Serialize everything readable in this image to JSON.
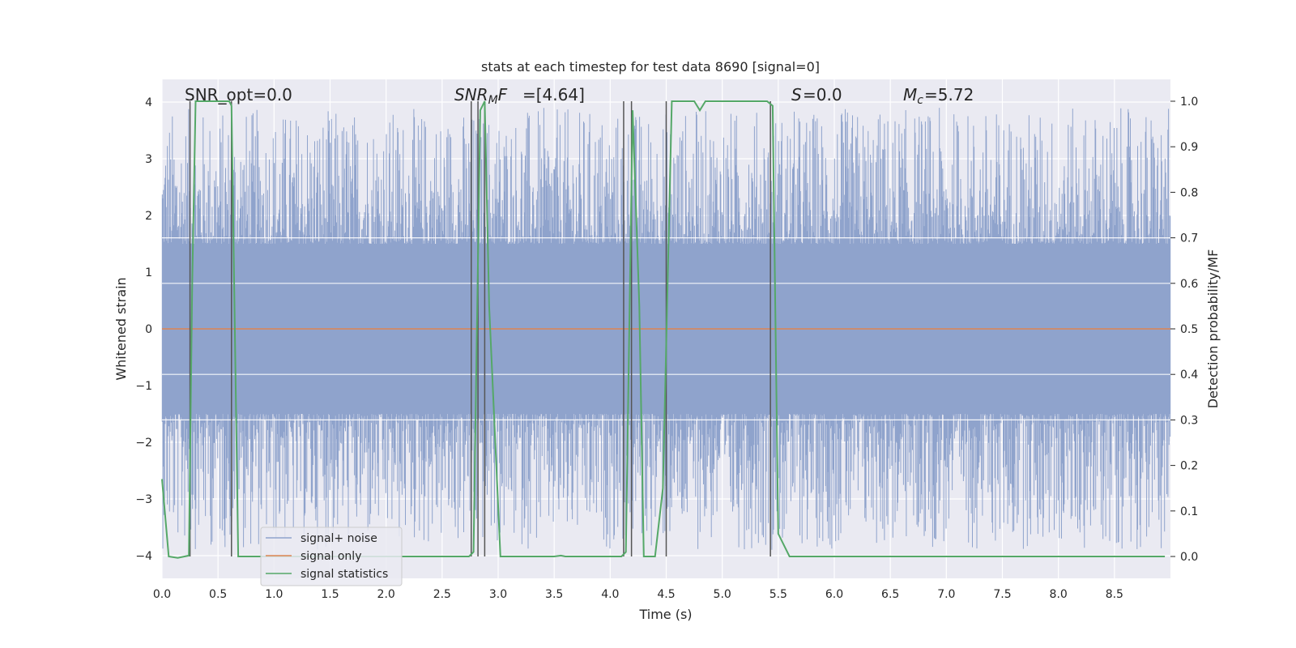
{
  "chart_data": {
    "type": "line",
    "title": "stats at each timestep for test data 8690 [signal=0]",
    "xlabel": "Time (s)",
    "ylabel": "Whitened strain",
    "y2label": "Detection probability/MF",
    "xlim": [
      0.0,
      9.0
    ],
    "ylim": [
      -4.4,
      4.4
    ],
    "y2lim": [
      -0.048,
      1.048
    ],
    "grid": true,
    "legend_position": "lower-left",
    "x_ticks": [
      "0.0",
      "0.5",
      "1.0",
      "1.5",
      "2.0",
      "2.5",
      "3.0",
      "3.5",
      "4.0",
      "4.5",
      "5.0",
      "5.5",
      "6.0",
      "6.5",
      "7.0",
      "7.5",
      "8.0",
      "8.5"
    ],
    "y_ticks": [
      "4",
      "3",
      "2",
      "1",
      "0",
      "−1",
      "−2",
      "−3",
      "−4"
    ],
    "y2_ticks": [
      "1.0",
      "0.9",
      "0.8",
      "0.7",
      "0.6",
      "0.5",
      "0.4",
      "0.3",
      "0.2",
      "0.1",
      "0.0"
    ],
    "annotations": {
      "snr_opt": "SNR_opt=0.0",
      "snr_mf": "=[4.64]",
      "s_value": "=0.0",
      "mc_value": "=5.72"
    },
    "series": [
      {
        "name": "signal+ noise",
        "color": "#8fa3cc",
        "axis": "left",
        "noise_band": {
          "core_abs": 1.5,
          "spike_range": [
            -3.9,
            3.9
          ]
        }
      },
      {
        "name": "signal only",
        "color": "#dd8452",
        "axis": "left",
        "x": [
          0.0,
          9.0
        ],
        "y": [
          0.0,
          0.0
        ]
      },
      {
        "name": "signal statistics",
        "color": "#55a868",
        "axis": "right",
        "x": [
          0.0,
          0.06,
          0.14,
          0.24,
          0.27,
          0.3,
          0.6,
          0.62,
          0.68,
          2.74,
          2.78,
          2.84,
          2.88,
          2.92,
          3.02,
          3.5,
          3.56,
          3.6,
          4.1,
          4.14,
          4.2,
          4.26,
          4.3,
          4.4,
          4.47,
          4.55,
          4.75,
          4.8,
          4.85,
          5.4,
          5.45,
          5.5,
          5.6,
          8.95
        ],
        "y": [
          0.17,
          0.0,
          -0.003,
          0.002,
          0.6,
          1.0,
          1.0,
          0.99,
          0.0,
          0.0,
          0.01,
          0.98,
          1.0,
          0.55,
          0.0,
          0.0,
          0.002,
          0.0,
          0.0,
          0.01,
          0.98,
          0.55,
          0.0,
          0.0,
          0.15,
          1.0,
          1.0,
          0.98,
          1.0,
          1.0,
          0.99,
          0.05,
          0.0,
          0.0
        ]
      }
    ],
    "vlines_x": [
      0.25,
      0.62,
      2.76,
      2.82,
      2.88,
      4.12,
      4.19,
      4.5,
      5.43
    ]
  }
}
